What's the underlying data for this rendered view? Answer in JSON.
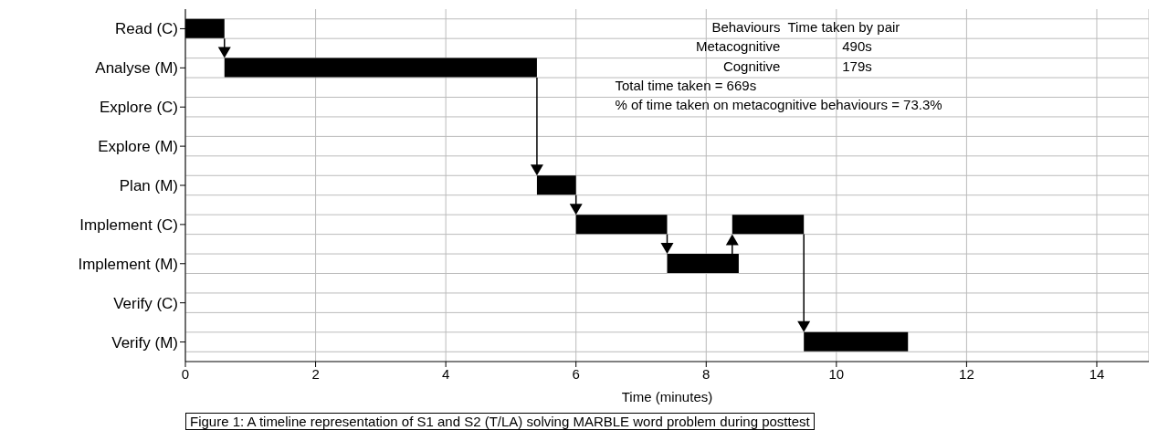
{
  "chart_data": {
    "type": "bar",
    "orientation": "horizontal",
    "title": "Figure 1: A timeline representation of S1 and S2 (T/LA) solving MARBLE word problem during posttest",
    "xlabel": "Time (minutes)",
    "categories": [
      "Read (C)",
      "Analyse (M)",
      "Explore (C)",
      "Explore (M)",
      "Plan (M)",
      "Implement (C)",
      "Implement (M)",
      "Verify (C)",
      "Verify (M)"
    ],
    "series": [
      {
        "color": "#000000",
        "base": [
          0,
          0.6,
          null,
          null,
          5.4,
          6.0,
          7.4,
          null,
          9.5
        ],
        "values": [
          0.6,
          4.8,
          null,
          null,
          0.6,
          1.4,
          1.1,
          null,
          1.6
        ]
      },
      {
        "color": "#000000",
        "base": [
          null,
          null,
          null,
          null,
          null,
          8.4,
          null,
          null,
          null
        ],
        "values": [
          null,
          null,
          null,
          null,
          null,
          1.1,
          null,
          null,
          null
        ]
      }
    ],
    "xlim": [
      0,
      14.8
    ],
    "xticks": [
      0,
      2,
      4,
      6,
      8,
      10,
      12,
      14
    ],
    "grid": true,
    "legend": false,
    "annotations": [
      "Behaviours",
      "Time taken by pair",
      "Metacognitive",
      "490s",
      "Cognitive",
      "179s",
      "Total time taken = 669s",
      "% of time taken on metacognitive behaviours = 73.3%"
    ]
  }
}
